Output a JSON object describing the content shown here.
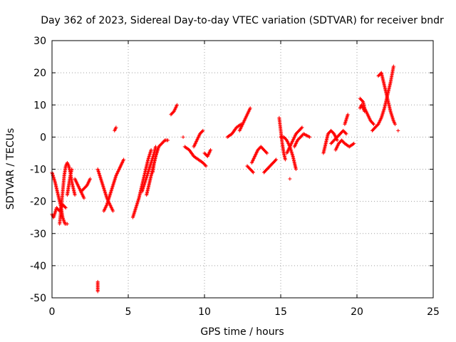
{
  "chart_data": {
    "type": "scatter",
    "title": "Day 362 of 2023, Sidereal Day-to-day VTEC variation (SDTVAR) for receiver bndr",
    "xlabel": "GPS time / hours",
    "ylabel": "SDTVAR / TECUs",
    "xlim": [
      0,
      25
    ],
    "ylim": [
      -50,
      30
    ],
    "x_ticks": [
      "0",
      "5",
      "10",
      "15",
      "20",
      "25"
    ],
    "y_ticks": [
      "-50",
      "-40",
      "-30",
      "-20",
      "-10",
      "0",
      "10",
      "20",
      "30"
    ],
    "grid": true,
    "marker": "+",
    "color": "#ff0000",
    "segments": [
      [
        [
          0.0,
          -24
        ],
        [
          0.1,
          -25
        ],
        [
          0.3,
          -22
        ],
        [
          0.5,
          -23
        ],
        [
          0.7,
          -21
        ],
        [
          0.9,
          -22
        ]
      ],
      [
        [
          0.0,
          -11
        ],
        [
          0.2,
          -14
        ],
        [
          0.4,
          -18
        ],
        [
          0.6,
          -22
        ],
        [
          0.7,
          -25
        ],
        [
          0.85,
          -27
        ],
        [
          1.0,
          -27
        ]
      ],
      [
        [
          0.5,
          -27
        ],
        [
          0.6,
          -22
        ],
        [
          0.7,
          -17
        ],
        [
          0.8,
          -12
        ],
        [
          0.9,
          -9
        ],
        [
          1.0,
          -8
        ],
        [
          1.1,
          -9
        ],
        [
          1.2,
          -11
        ],
        [
          1.3,
          -14
        ],
        [
          1.4,
          -16
        ],
        [
          1.5,
          -18
        ]
      ],
      [
        [
          1.0,
          -18
        ],
        [
          1.1,
          -15
        ],
        [
          1.2,
          -12
        ],
        [
          1.3,
          -10
        ]
      ],
      [
        [
          1.5,
          -13
        ],
        [
          1.7,
          -15
        ],
        [
          1.9,
          -17
        ],
        [
          2.1,
          -19
        ]
      ],
      [
        [
          1.9,
          -17
        ],
        [
          2.1,
          -16
        ],
        [
          2.3,
          -15
        ],
        [
          2.5,
          -13
        ]
      ],
      [
        [
          3.0,
          -10
        ],
        [
          3.2,
          -13
        ],
        [
          3.4,
          -16
        ],
        [
          3.6,
          -19
        ],
        [
          3.8,
          -21
        ],
        [
          4.0,
          -23
        ]
      ],
      [
        [
          3.4,
          -23
        ],
        [
          3.6,
          -21
        ],
        [
          3.8,
          -18
        ],
        [
          4.0,
          -15
        ],
        [
          4.2,
          -12
        ],
        [
          4.4,
          -10
        ],
        [
          4.6,
          -8
        ],
        [
          4.7,
          -7
        ]
      ],
      [
        [
          3.0,
          -45
        ],
        [
          3.0,
          -46
        ],
        [
          3.0,
          -47
        ],
        [
          3.0,
          -48
        ]
      ],
      [
        [
          4.1,
          2
        ],
        [
          4.2,
          3
        ]
      ],
      [
        [
          5.3,
          -25
        ],
        [
          5.5,
          -22
        ],
        [
          5.7,
          -19
        ],
        [
          5.9,
          -15
        ],
        [
          6.1,
          -11
        ],
        [
          6.3,
          -7
        ],
        [
          6.5,
          -4
        ]
      ],
      [
        [
          5.9,
          -17
        ],
        [
          6.1,
          -14
        ],
        [
          6.3,
          -11
        ],
        [
          6.5,
          -8
        ],
        [
          6.7,
          -5
        ],
        [
          6.8,
          -3
        ]
      ],
      [
        [
          6.2,
          -18
        ],
        [
          6.4,
          -14
        ],
        [
          6.6,
          -10
        ],
        [
          6.8,
          -6
        ],
        [
          7.0,
          -3
        ],
        [
          7.2,
          -2
        ],
        [
          7.4,
          -1
        ],
        [
          7.6,
          -1
        ]
      ],
      [
        [
          6.6,
          -11
        ],
        [
          6.7,
          -8
        ],
        [
          6.8,
          -6
        ],
        [
          6.9,
          -4
        ]
      ],
      [
        [
          7.8,
          7
        ],
        [
          8.0,
          8
        ],
        [
          8.1,
          9
        ],
        [
          8.2,
          10
        ]
      ],
      [
        [
          8.6,
          0
        ]
      ],
      [
        [
          8.7,
          -3
        ],
        [
          9.0,
          -4
        ],
        [
          9.3,
          -6
        ],
        [
          9.6,
          -7
        ],
        [
          9.9,
          -8
        ],
        [
          10.1,
          -9
        ]
      ],
      [
        [
          9.3,
          -3
        ],
        [
          9.5,
          -1
        ],
        [
          9.7,
          1
        ],
        [
          9.9,
          2
        ]
      ],
      [
        [
          10.0,
          -5
        ],
        [
          10.2,
          -6
        ],
        [
          10.4,
          -4
        ]
      ],
      [
        [
          11.5,
          0
        ],
        [
          11.8,
          1
        ],
        [
          12.1,
          3
        ],
        [
          12.4,
          4
        ]
      ],
      [
        [
          12.3,
          2
        ],
        [
          12.5,
          4
        ],
        [
          12.7,
          6
        ],
        [
          12.9,
          8
        ],
        [
          13.0,
          9
        ]
      ],
      [
        [
          12.8,
          -9
        ],
        [
          13.0,
          -10
        ],
        [
          13.2,
          -11
        ]
      ],
      [
        [
          13.1,
          -8
        ],
        [
          13.3,
          -6
        ],
        [
          13.5,
          -4
        ],
        [
          13.7,
          -3
        ],
        [
          13.9,
          -4
        ],
        [
          14.1,
          -5
        ]
      ],
      [
        [
          13.9,
          -11
        ],
        [
          14.1,
          -10
        ],
        [
          14.3,
          -9
        ],
        [
          14.5,
          -8
        ],
        [
          14.7,
          -7
        ]
      ],
      [
        [
          14.9,
          6
        ],
        [
          15.0,
          2
        ],
        [
          15.1,
          -2
        ],
        [
          15.2,
          -5
        ],
        [
          15.3,
          -7
        ]
      ],
      [
        [
          15.0,
          0
        ],
        [
          15.2,
          0
        ],
        [
          15.4,
          -1
        ],
        [
          15.6,
          -3
        ],
        [
          15.8,
          -6
        ],
        [
          15.9,
          -8
        ],
        [
          16.0,
          -10
        ]
      ],
      [
        [
          15.4,
          -5
        ],
        [
          15.6,
          -3
        ],
        [
          15.8,
          -1
        ],
        [
          16.0,
          1
        ],
        [
          16.2,
          2
        ],
        [
          16.4,
          3
        ]
      ],
      [
        [
          15.9,
          -3
        ],
        [
          16.1,
          -1
        ],
        [
          16.3,
          0
        ],
        [
          16.5,
          1
        ],
        [
          16.9,
          0
        ]
      ],
      [
        [
          15.6,
          -13
        ]
      ],
      [
        [
          17.8,
          -5
        ],
        [
          17.9,
          -3
        ],
        [
          18.0,
          -1
        ],
        [
          18.1,
          1
        ],
        [
          18.3,
          2
        ],
        [
          18.5,
          1
        ],
        [
          18.7,
          -1
        ]
      ],
      [
        [
          18.3,
          -2
        ],
        [
          18.5,
          -1
        ],
        [
          18.7,
          0
        ],
        [
          18.9,
          1
        ],
        [
          19.1,
          2
        ],
        [
          19.3,
          1
        ]
      ],
      [
        [
          18.6,
          -4
        ],
        [
          18.8,
          -2
        ],
        [
          19.0,
          -1
        ],
        [
          19.2,
          -2
        ],
        [
          19.5,
          -3
        ],
        [
          19.8,
          -2
        ]
      ],
      [
        [
          19.2,
          4
        ],
        [
          19.4,
          7
        ]
      ],
      [
        [
          20.2,
          12
        ],
        [
          20.4,
          11
        ],
        [
          20.5,
          9
        ],
        [
          20.7,
          7
        ],
        [
          20.9,
          5
        ],
        [
          21.1,
          4
        ]
      ],
      [
        [
          20.2,
          9
        ],
        [
          20.3,
          10
        ],
        [
          20.5,
          8
        ]
      ],
      [
        [
          21.0,
          2
        ],
        [
          21.2,
          3
        ],
        [
          21.4,
          4
        ],
        [
          21.6,
          6
        ],
        [
          21.8,
          9
        ],
        [
          22.0,
          13
        ],
        [
          22.2,
          17
        ],
        [
          22.4,
          22
        ]
      ],
      [
        [
          21.4,
          19
        ],
        [
          21.6,
          20
        ],
        [
          21.8,
          16
        ],
        [
          22.0,
          12
        ],
        [
          22.2,
          8
        ],
        [
          22.4,
          5
        ],
        [
          22.5,
          4
        ]
      ],
      [
        [
          22.7,
          2
        ]
      ]
    ]
  }
}
